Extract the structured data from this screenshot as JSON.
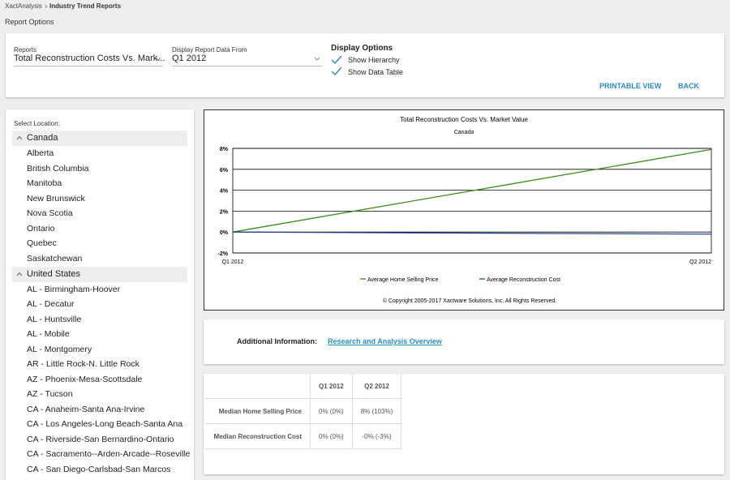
{
  "breadcrumb": {
    "root": "XactAnalysis",
    "current": "Industry Trend Reports"
  },
  "page_title": "Report Options",
  "report_options": {
    "reports_label": "Reports",
    "reports_value": "Total Reconstruction Costs Vs. Mark...",
    "from_label": "Display Report Data From",
    "from_value": "Q1 2012",
    "display_options": {
      "title": "Display Options",
      "items": [
        "Show Hierarchy",
        "Show Data Table"
      ]
    },
    "buttons": [
      "PRINTABLE VIEW",
      "BACK"
    ]
  },
  "locations": {
    "label": "Select Location:",
    "groups": [
      {
        "name": "Canada",
        "items": [
          "Alberta",
          "British Columbia",
          "Manitoba",
          "New Brunswick",
          "Nova Scotia",
          "Ontario",
          "Quebec",
          "Saskatchewan"
        ]
      },
      {
        "name": "United States",
        "items": [
          "AL - Birmingham-Hoover",
          "AL - Decatur",
          "AL - Huntsville",
          "AL - Mobile",
          "AL - Montgomery",
          "AR - Little Rock-N. Little Rock",
          "AZ - Phoenix-Mesa-Scottsdale",
          "AZ - Tucson",
          "CA - Anaheim-Santa Ana-Irvine",
          "CA - Los Angeles-Long Beach-Santa Ana",
          "CA - Riverside-San Bernardino-Ontario",
          "CA - Sacramento--Arden-Arcade--Roseville",
          "CA - San Diego-Carlsbad-San Marcos"
        ]
      }
    ]
  },
  "chart_data": {
    "type": "line",
    "title": "Total Reconstruction Costs Vs. Market Value",
    "subtitle": "Canada",
    "categories": [
      "Q1 2012",
      "Q2 2012"
    ],
    "series": [
      {
        "name": "Average Home Selling Price",
        "color": "#3c8c1c",
        "values": [
          0,
          7.9
        ]
      },
      {
        "name": "Average Reconstruction Cost",
        "color": "#24468f",
        "values": [
          0,
          -0.2
        ]
      }
    ],
    "ylim": [
      -2,
      8
    ],
    "yticks": [
      {
        "value": 8,
        "label": "8%"
      },
      {
        "value": 6,
        "label": "6%"
      },
      {
        "value": 4,
        "label": "4%"
      },
      {
        "value": 2,
        "label": "2%"
      },
      {
        "value": 0,
        "label": "0%"
      },
      {
        "value": -2,
        "label": "-2%"
      }
    ],
    "grid": true,
    "legend": "bottom",
    "copyright": "© Copyright 2005-2017 Xactware Solutions, Inc. All Rights Reserved."
  },
  "additional_info": {
    "label": "Additional Information:",
    "link": "Research and Analysis Overview"
  },
  "table": {
    "columns": [
      "Q1 2012",
      "Q2 2012"
    ],
    "rows": [
      {
        "label": "Median Home Selling Price",
        "cells": [
          "0% (0%)",
          "8% (103%)"
        ]
      },
      {
        "label": "Median Reconstruction Cost",
        "cells": [
          "0% (0%)",
          "-0% (-3%)"
        ]
      }
    ]
  }
}
